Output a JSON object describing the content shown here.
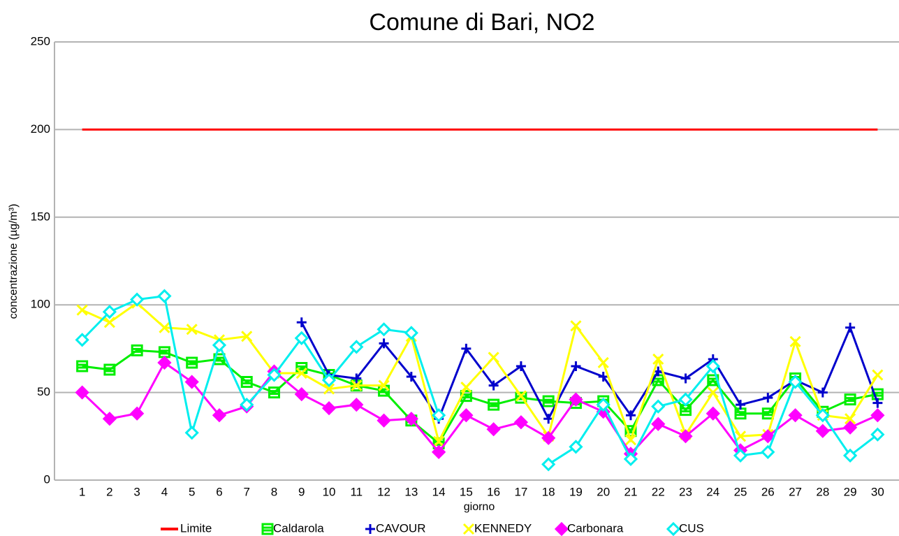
{
  "chart_data": {
    "type": "line",
    "title": "Comune di Bari, NO2",
    "xlabel": "giorno",
    "ylabel": "concentrazione (µg/m³)",
    "categories": [
      1,
      2,
      3,
      4,
      5,
      6,
      7,
      8,
      9,
      10,
      11,
      12,
      13,
      14,
      15,
      16,
      17,
      18,
      19,
      20,
      21,
      22,
      23,
      24,
      25,
      26,
      27,
      28,
      29,
      30
    ],
    "ylim": [
      0,
      250
    ],
    "yticks": [
      0,
      50,
      100,
      150,
      200,
      250
    ],
    "grid": true,
    "legend": "bottom",
    "series": [
      {
        "name": "Limite",
        "color": "#ff0000",
        "marker": "none",
        "values": [
          200,
          200,
          200,
          200,
          200,
          200,
          200,
          200,
          200,
          200,
          200,
          200,
          200,
          200,
          200,
          200,
          200,
          200,
          200,
          200,
          200,
          200,
          200,
          200,
          200,
          200,
          200,
          200,
          200,
          200
        ]
      },
      {
        "name": "Caldarola",
        "color": "#00ee00",
        "marker": "square",
        "values": [
          65,
          63,
          74,
          73,
          67,
          69,
          56,
          50,
          64,
          60,
          54,
          51,
          34,
          21,
          48,
          43,
          47,
          45,
          44,
          45,
          28,
          57,
          40,
          57,
          38,
          38,
          58,
          39,
          46,
          49
        ]
      },
      {
        "name": "CAVOUR",
        "color": "#0000cc",
        "marker": "plus",
        "values": [
          null,
          null,
          null,
          null,
          null,
          null,
          null,
          null,
          90,
          60,
          58,
          78,
          59,
          35,
          75,
          54,
          65,
          35,
          65,
          59,
          37,
          62,
          58,
          69,
          43,
          47,
          57,
          50,
          87,
          44
        ]
      },
      {
        "name": "KENNEDY",
        "color": "#ffff00",
        "marker": "x",
        "values": [
          97,
          90,
          101,
          87,
          86,
          80,
          82,
          61,
          61,
          52,
          54,
          54,
          82,
          22,
          53,
          70,
          48,
          25,
          88,
          67,
          23,
          69,
          26,
          50,
          25,
          26,
          79,
          37,
          35,
          60
        ]
      },
      {
        "name": "Carbonara",
        "color": "#ff00ff",
        "marker": "diamond",
        "values": [
          50,
          35,
          38,
          67,
          56,
          37,
          42,
          62,
          49,
          41,
          43,
          34,
          35,
          16,
          37,
          29,
          33,
          24,
          46,
          39,
          15,
          32,
          25,
          38,
          17,
          25,
          37,
          28,
          30,
          37
        ]
      },
      {
        "name": "CUS",
        "color": "#00eeee",
        "marker": "diamond-open",
        "values": [
          80,
          96,
          103,
          105,
          27,
          77,
          43,
          60,
          81,
          57,
          76,
          86,
          84,
          37,
          null,
          null,
          null,
          9,
          19,
          43,
          12,
          42,
          46,
          65,
          14,
          16,
          56,
          37,
          14,
          26
        ]
      }
    ]
  }
}
